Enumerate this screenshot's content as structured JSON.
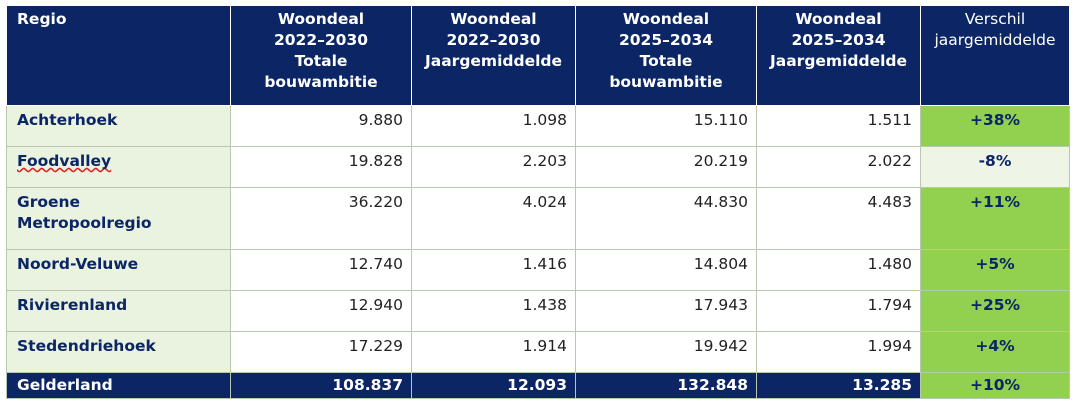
{
  "headers": {
    "regio": "Regio",
    "col1": [
      "Woondeal",
      "2022–2030",
      "Totale",
      "bouwambitie"
    ],
    "col2": [
      "Woondeal",
      "2022–2030",
      "Jaargemiddelde"
    ],
    "col3": [
      "Woondeal",
      "2025–2034",
      "Totale",
      "bouwambitie"
    ],
    "col4": [
      "Woondeal",
      "2025–2034",
      "Jaargemiddelde"
    ],
    "col5": [
      "Verschil",
      "jaargemiddelde"
    ]
  },
  "rows": [
    {
      "region": [
        "Achterhoek"
      ],
      "c1": "9.880",
      "c2": "1.098",
      "c3": "15.110",
      "c4": "1.511",
      "diff": "+38%",
      "diff_positive": true
    },
    {
      "region": [
        "Foodvalley"
      ],
      "c1": "19.828",
      "c2": "2.203",
      "c3": "20.219",
      "c4": "2.022",
      "diff": "-8%",
      "diff_positive": false
    },
    {
      "region": [
        "Groene",
        "Metropoolregio"
      ],
      "c1": "36.220",
      "c2": "4.024",
      "c3": "44.830",
      "c4": "4.483",
      "diff": "+11%",
      "diff_positive": true
    },
    {
      "region": [
        "Noord-Veluwe"
      ],
      "c1": "12.740",
      "c2": "1.416",
      "c3": "14.804",
      "c4": "1.480",
      "diff": "+5%",
      "diff_positive": true
    },
    {
      "region": [
        "Rivierenland"
      ],
      "c1": "12.940",
      "c2": "1.438",
      "c3": "17.943",
      "c4": "1.794",
      "diff": "+25%",
      "diff_positive": true
    },
    {
      "region": [
        "Stedendriehoek"
      ],
      "c1": "17.229",
      "c2": "1.914",
      "c3": "19.942",
      "c4": "1.994",
      "diff": "+4%",
      "diff_positive": true
    }
  ],
  "total": {
    "region": "Gelderland",
    "c1": "108.837",
    "c2": "12.093",
    "c3": "132.848",
    "c4": "13.285",
    "diff": "+10%"
  },
  "colors": {
    "header_bg": "#0b2565",
    "region_bg": "#e9f3df",
    "positive_bg": "#92d050"
  }
}
